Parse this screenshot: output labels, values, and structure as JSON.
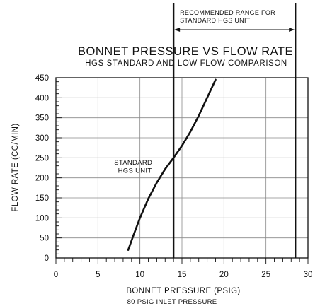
{
  "chart_data": {
    "type": "line",
    "title": "BONNET PRESSURE VS FLOW RATE",
    "subtitle": "HGS STANDARD AND LOW FLOW COMPARISON",
    "xlabel": "BONNET PRESSURE (PSIG)",
    "xlabel_note": "80 PSIG INLET PRESSURE",
    "ylabel": "FLOW RATE (CC/MIN)",
    "xlim": [
      0,
      30
    ],
    "ylim": [
      0,
      450
    ],
    "xticks": [
      0,
      5,
      10,
      15,
      20,
      25,
      30
    ],
    "yticks": [
      0,
      50,
      100,
      150,
      200,
      250,
      300,
      350,
      400,
      450
    ],
    "grid": true,
    "series": [
      {
        "name": "STANDARD HGS UNIT",
        "x": [
          8.6,
          9.2,
          10.0,
          11.0,
          12.0,
          13.0,
          14.0,
          15.0,
          16.0,
          17.0,
          18.0,
          19.0
        ],
        "y": [
          20,
          55,
          100,
          148,
          188,
          222,
          250,
          280,
          315,
          355,
          400,
          445
        ]
      }
    ],
    "reference_lines": [
      {
        "axis": "x",
        "value": 14
      },
      {
        "axis": "x",
        "value": 28.5
      }
    ],
    "annotations": {
      "series_label": [
        "STANDARD",
        "HGS UNIT"
      ],
      "range_label": [
        "RECOMMENDED RANGE FOR",
        "STANDARD HGS UNIT"
      ],
      "range": [
        14,
        28.5
      ]
    }
  }
}
